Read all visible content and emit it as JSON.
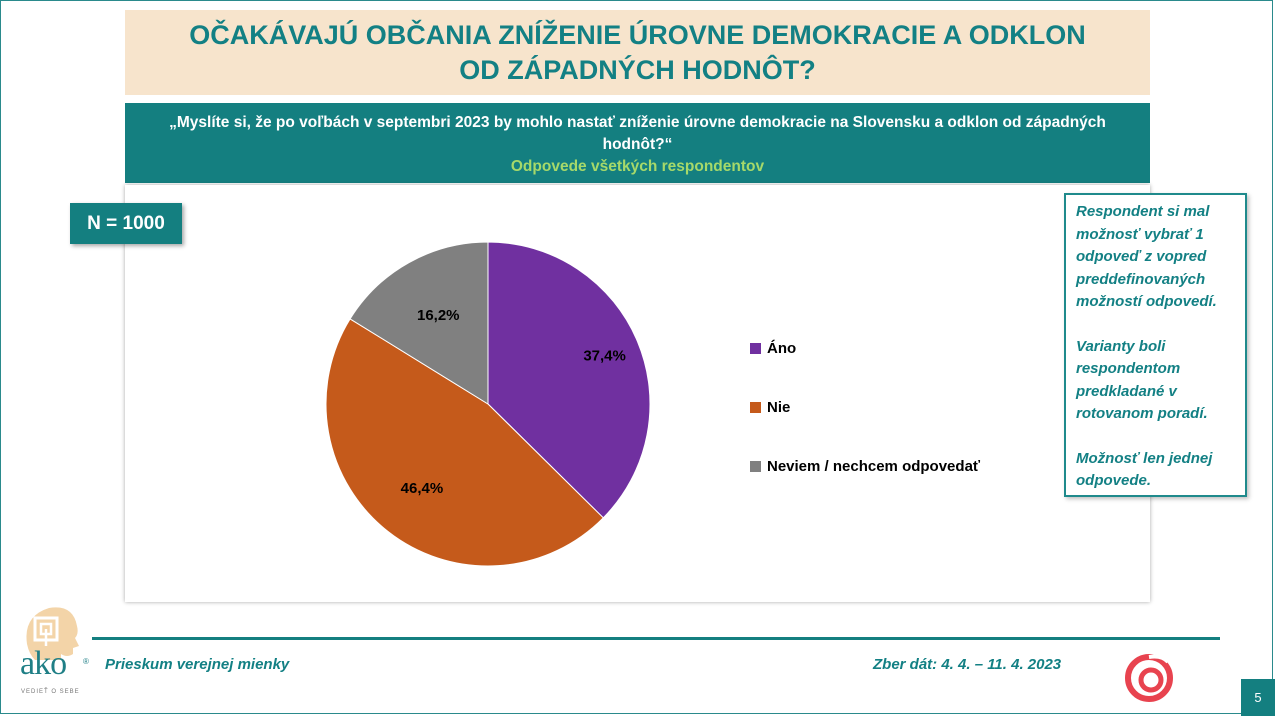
{
  "title": {
    "line1": "OČAKÁVAJÚ OBČANIA ZNÍŽENIE ÚROVNE DEMOKRACIE A ODKLON",
    "line2": "OD ZÁPADNÝCH HODNÔT?"
  },
  "question": {
    "text": "„Myslíte si, že po voľbách v septembri 2023 by mohlo nastať zníženie úrovne demokracie na Slovensku a odklon od západných hodnôt?“",
    "subtitle": "Odpovede všetkých respondentov"
  },
  "sample": {
    "label": "N = 1000"
  },
  "note": {
    "paragraphs": [
      "Respondent si mal možnosť vybrať 1 odpoveď z vopred preddefinovaných možností odpovedí.",
      "Varianty boli respondentom predkladané v rotovanom poradí.",
      "Možnosť len jednej odpovede."
    ]
  },
  "chart_data": {
    "type": "pie",
    "title": "",
    "categories": [
      "Áno",
      "Nie",
      "Neviem / nechcem odpovedať"
    ],
    "values": [
      37.4,
      46.4,
      16.2
    ],
    "value_labels": [
      "37,4%",
      "46,4%",
      "16,2%"
    ],
    "colors": [
      "#7030a0",
      "#c55a1b",
      "#808080"
    ],
    "legend_position": "right",
    "start_angle_deg": 0,
    "direction": "clockwise"
  },
  "footer": {
    "left": "Prieskum verejnej mienky",
    "right": "Zber dát: 4. 4. – 11. 4. 2023",
    "page": "5"
  },
  "logo": {
    "text": "ako",
    "tagline": "VEDIEŤ O SEBE",
    "reg": "®"
  },
  "colors": {
    "teal": "#147f80",
    "title_bg": "#f7e4cc",
    "subtitle_green": "#a6d96a"
  }
}
